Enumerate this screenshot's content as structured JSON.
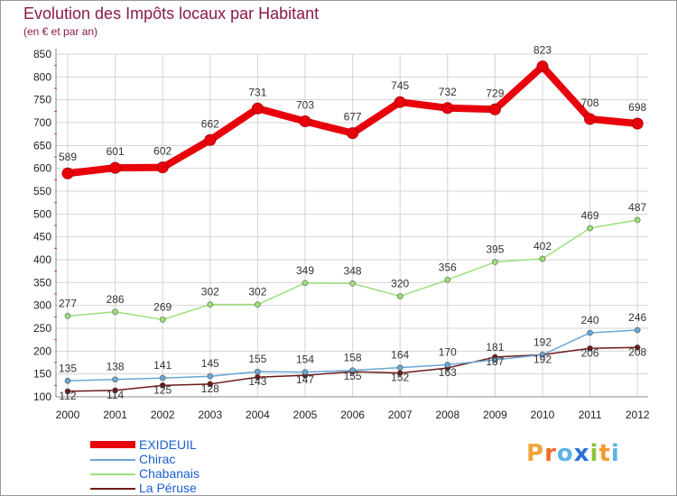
{
  "title": "Evolution des Impôts locaux par Habitant",
  "subtitle": "(en € et par an)",
  "logo": {
    "letters": [
      "P",
      "r",
      "o",
      "x",
      "i",
      "t",
      "i"
    ],
    "colors": [
      "#f2a53a",
      "#f26d2c",
      "#5bb3e6",
      "#2a6fd6",
      "#8cc43c",
      "#f29a2e",
      "#5bb3e6"
    ]
  },
  "chart_data": {
    "type": "line",
    "x": [
      "2000",
      "2001",
      "2002",
      "2003",
      "2004",
      "2005",
      "2006",
      "2007",
      "2008",
      "2009",
      "2010",
      "2011",
      "2012"
    ],
    "ylim": [
      100,
      850
    ],
    "yticks": [
      100,
      150,
      200,
      250,
      300,
      350,
      400,
      450,
      500,
      550,
      600,
      650,
      700,
      750,
      800,
      850
    ],
    "grid": true,
    "legend_position": "bottom-left",
    "series": [
      {
        "name": "EXIDEUIL",
        "color": "#e8000b",
        "values": [
          589,
          601,
          602,
          662,
          731,
          703,
          677,
          745,
          732,
          729,
          823,
          708,
          698
        ],
        "labels": [
          "589",
          "601",
          "602",
          "662",
          "731",
          "703",
          "677",
          "745",
          "732",
          "729",
          "823",
          "708",
          "698"
        ]
      },
      {
        "name": "Chirac",
        "color": "#6aa7d6",
        "values": [
          135,
          138,
          141,
          145,
          155,
          154,
          158,
          164,
          170,
          181,
          192,
          240,
          246
        ],
        "labels": [
          "135",
          "138",
          "141",
          "145",
          "155",
          "154",
          "158",
          "164",
          "170",
          "181",
          "192",
          "240",
          "246"
        ]
      },
      {
        "name": "Chabanais",
        "color": "#9ee07a",
        "values": [
          277,
          286,
          269,
          302,
          302,
          349,
          348,
          320,
          356,
          395,
          402,
          469,
          487
        ],
        "labels": [
          "277",
          "286",
          "269",
          "302",
          "302",
          "349",
          "348",
          "320",
          "356",
          "395",
          "402",
          "469",
          "487"
        ]
      },
      {
        "name": "La Péruse",
        "color": "#6b1a1a",
        "values": [
          112,
          114,
          125,
          128,
          143,
          147,
          155,
          152,
          163,
          187,
          192,
          206,
          208
        ],
        "labels": [
          "112",
          "114",
          "125",
          "128",
          "143",
          "147",
          "155",
          "152",
          "163",
          "187",
          "192",
          "206",
          "208"
        ]
      }
    ]
  }
}
